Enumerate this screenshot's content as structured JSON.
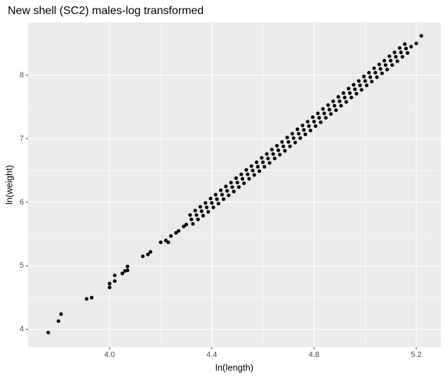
{
  "chart_data": {
    "type": "scatter",
    "title": "New shell (SC2) males-log transformed",
    "x_label": "ln(length)",
    "y_label": "ln(weight)",
    "color": "#000000",
    "grid": true,
    "panel_background": "#ebebeb",
    "xlim": [
      3.681,
      5.296
    ],
    "ylim": [
      3.72,
      8.83
    ],
    "xticks": [
      {
        "value": 4,
        "label": "4.0"
      },
      4.4,
      4.8,
      5.2
    ],
    "yticks": [
      4,
      5,
      6,
      7,
      8
    ],
    "minor_xticks": [
      4.2,
      4.6,
      5.0
    ],
    "minor_yticks": [
      4.5,
      5.5,
      6.5,
      7.5
    ],
    "x": [
      3.76,
      3.8,
      3.81,
      3.91,
      3.93,
      4.0,
      4.0,
      4.02,
      4.02,
      4.05,
      4.06,
      4.07,
      4.07,
      4.13,
      4.15,
      4.16,
      4.2,
      4.22,
      4.23,
      4.24,
      4.26,
      4.27,
      4.29,
      4.3,
      4.315,
      4.32,
      4.326,
      4.335,
      4.34,
      4.346,
      4.355,
      4.36,
      4.366,
      4.375,
      4.38,
      4.386,
      4.395,
      4.4,
      4.406,
      4.415,
      4.42,
      4.426,
      4.435,
      4.44,
      4.446,
      4.455,
      4.46,
      4.466,
      4.475,
      4.48,
      4.486,
      4.495,
      4.5,
      4.506,
      4.515,
      4.52,
      4.526,
      4.535,
      4.54,
      4.546,
      4.555,
      4.56,
      4.566,
      4.575,
      4.58,
      4.586,
      4.595,
      4.6,
      4.606,
      4.615,
      4.62,
      4.626,
      4.635,
      4.64,
      4.646,
      4.655,
      4.66,
      4.666,
      4.675,
      4.68,
      4.686,
      4.695,
      4.7,
      4.706,
      4.715,
      4.72,
      4.726,
      4.735,
      4.74,
      4.746,
      4.755,
      4.76,
      4.766,
      4.775,
      4.78,
      4.786,
      4.795,
      4.8,
      4.806,
      4.815,
      4.82,
      4.826,
      4.835,
      4.84,
      4.846,
      4.855,
      4.86,
      4.866,
      4.875,
      4.88,
      4.886,
      4.895,
      4.9,
      4.906,
      4.915,
      4.92,
      4.926,
      4.935,
      4.94,
      4.946,
      4.955,
      4.96,
      4.966,
      4.975,
      4.98,
      4.986,
      4.995,
      5.0,
      5.006,
      5.015,
      5.02,
      5.026,
      5.035,
      5.04,
      5.046,
      5.055,
      5.06,
      5.066,
      5.075,
      5.08,
      5.086,
      5.095,
      5.1,
      5.106,
      5.115,
      5.12,
      5.126,
      5.135,
      5.14,
      5.146,
      5.155,
      5.16,
      5.166,
      5.18,
      5.2,
      5.22
    ],
    "y": [
      3.95,
      4.13,
      4.24,
      4.48,
      4.5,
      4.66,
      4.72,
      4.76,
      4.85,
      4.88,
      4.92,
      4.93,
      4.99,
      5.15,
      5.18,
      5.22,
      5.37,
      5.4,
      5.37,
      5.47,
      5.52,
      5.55,
      5.62,
      5.65,
      5.8,
      5.73,
      5.66,
      5.87,
      5.8,
      5.73,
      5.93,
      5.86,
      5.79,
      5.99,
      5.92,
      5.85,
      6.06,
      5.99,
      5.92,
      6.12,
      6.05,
      5.98,
      6.19,
      6.12,
      6.05,
      6.25,
      6.18,
      6.11,
      6.31,
      6.24,
      6.17,
      6.38,
      6.31,
      6.24,
      6.44,
      6.37,
      6.3,
      6.51,
      6.44,
      6.37,
      6.57,
      6.5,
      6.43,
      6.63,
      6.56,
      6.49,
      6.7,
      6.63,
      6.56,
      6.76,
      6.69,
      6.62,
      6.83,
      6.76,
      6.69,
      6.89,
      6.82,
      6.75,
      6.95,
      6.88,
      6.81,
      7.02,
      6.95,
      6.88,
      7.08,
      7.01,
      6.94,
      7.15,
      7.08,
      7.01,
      7.21,
      7.14,
      7.07,
      7.27,
      7.2,
      7.13,
      7.34,
      7.27,
      7.2,
      7.4,
      7.33,
      7.26,
      7.47,
      7.4,
      7.33,
      7.53,
      7.46,
      7.39,
      7.59,
      7.52,
      7.45,
      7.66,
      7.59,
      7.52,
      7.72,
      7.65,
      7.58,
      7.79,
      7.72,
      7.65,
      7.85,
      7.78,
      7.71,
      7.91,
      7.84,
      7.77,
      7.98,
      7.91,
      7.84,
      8.04,
      7.97,
      7.9,
      8.11,
      8.04,
      7.97,
      8.17,
      8.1,
      8.03,
      8.23,
      8.16,
      8.09,
      8.3,
      8.23,
      8.16,
      8.36,
      8.29,
      8.22,
      8.43,
      8.36,
      8.29,
      8.49,
      8.42,
      8.35,
      8.45,
      8.5,
      8.62
    ]
  }
}
